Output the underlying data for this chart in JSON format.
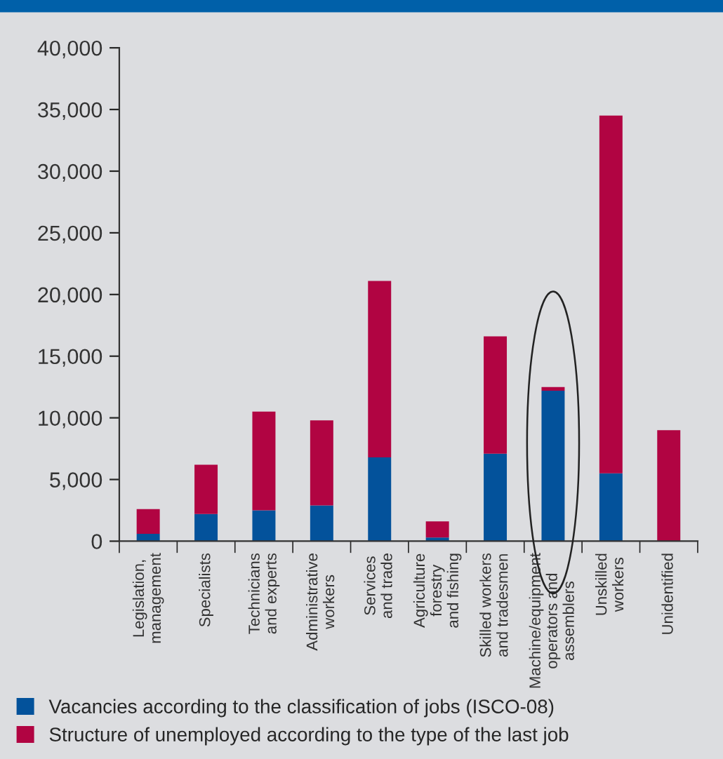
{
  "chart_data": {
    "type": "bar",
    "stacked": true,
    "categories": [
      "Legislation,\nmanagement",
      "Specialists",
      "Technicians\nand experts",
      "Administrative\nworkers",
      "Services\nand trade",
      "Agriculture\nforestry\nand fishing",
      "Skilled workers\nand tradesmen",
      "Machine/equipment\noperators and\nassemblers",
      "Unskilled\nworkers",
      "Unidentified"
    ],
    "series": [
      {
        "name": "Vacancies according to the classification of jobs (ISCO-08)",
        "color": "#03529b",
        "values": [
          600,
          2200,
          2500,
          2900,
          6800,
          300,
          7100,
          12200,
          5500,
          0
        ]
      },
      {
        "name": "Structure of unemployed according to the type of the last job",
        "color": "#b10442",
        "values": [
          2000,
          4000,
          8000,
          6900,
          14300,
          1300,
          9500,
          300,
          29000,
          9000
        ]
      }
    ],
    "ylim": [
      0,
      40000
    ],
    "yticks": [
      {
        "value": 0,
        "label": "0"
      },
      {
        "value": 5000,
        "label": "5,000"
      },
      {
        "value": 10000,
        "label": "10,000"
      },
      {
        "value": 15000,
        "label": "15,000"
      },
      {
        "value": 20000,
        "label": "20,000"
      },
      {
        "value": 25000,
        "label": "25,000"
      },
      {
        "value": 30000,
        "label": "30,000"
      },
      {
        "value": 35000,
        "label": "35,000"
      },
      {
        "value": 40000,
        "label": "40,000"
      }
    ],
    "grid": false,
    "legend": "bottom"
  }
}
